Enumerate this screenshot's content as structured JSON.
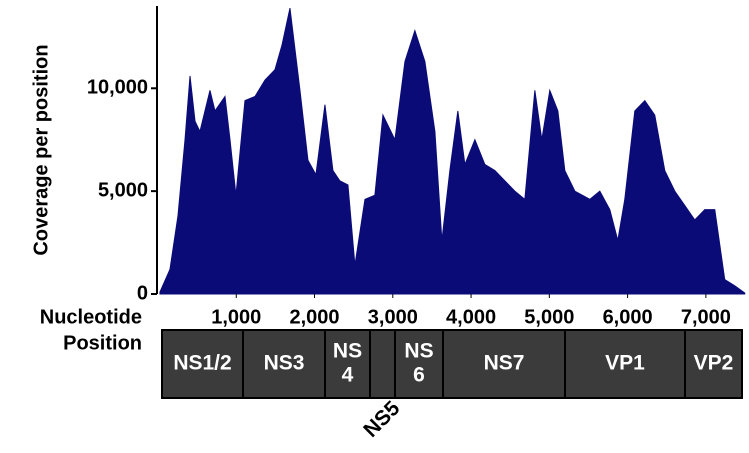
{
  "chart_data": {
    "type": "area",
    "y_label": "Coverage per position",
    "x_label": [
      "Nucleotide",
      "Position"
    ],
    "color": "#0b0b78",
    "x": [
      25,
      153,
      255,
      345,
      409,
      473,
      536,
      664,
      728,
      856,
      920,
      996,
      1111,
      1239,
      1367,
      1494,
      1584,
      1686,
      1814,
      1916,
      2018,
      2133,
      2235,
      2324,
      2427,
      2516,
      2644,
      2771,
      2874,
      3027,
      3155,
      3282,
      3410,
      3538,
      3627,
      3729,
      3831,
      3921,
      4049,
      4176,
      4304,
      4432,
      4559,
      4687,
      4815,
      4904,
      5006,
      5109,
      5198,
      5326,
      5517,
      5645,
      5773,
      5875,
      5964,
      6092,
      6220,
      6347,
      6475,
      6603,
      6731,
      6858,
      6986,
      7114,
      7241,
      7369,
      7497
    ],
    "values": [
      100,
      1200,
      3800,
      7500,
      10600,
      8400,
      7900,
      9900,
      8900,
      9600,
      7500,
      4800,
      9400,
      9600,
      10400,
      10900,
      12100,
      13900,
      9900,
      6500,
      5800,
      9200,
      6000,
      5500,
      5300,
      1400,
      4600,
      4800,
      8700,
      7500,
      11300,
      12800,
      11300,
      7900,
      2600,
      6000,
      8900,
      6300,
      7500,
      6300,
      6000,
      5500,
      5000,
      4600,
      9900,
      7500,
      9900,
      8900,
      6000,
      5000,
      4600,
      5000,
      4100,
      2600,
      4600,
      8900,
      9400,
      8700,
      6000,
      5000,
      4300,
      3600,
      4100,
      4100,
      700,
      400,
      50
    ],
    "xlim": [
      0,
      7500
    ],
    "xticks": [
      {
        "value": 1000,
        "label": "1,000"
      },
      {
        "value": 2000,
        "label": "2,000"
      },
      {
        "value": 3000,
        "label": "3,000"
      },
      {
        "value": 4000,
        "label": "4,000"
      },
      {
        "value": 5000,
        "label": "5,000"
      },
      {
        "value": 6000,
        "label": "6,000"
      },
      {
        "value": 7000,
        "label": "7,000"
      }
    ],
    "ylim": [
      0,
      14000
    ],
    "yticks": [
      0,
      {
        "value": 5000,
        "label": "5,000"
      },
      {
        "value": 10000,
        "label": "10,000"
      }
    ]
  },
  "genome_map": {
    "segments": [
      {
        "label": [
          "NS1/2"
        ]
      },
      {
        "label": [
          "NS3"
        ]
      },
      {
        "label": [
          "NS",
          "4"
        ]
      },
      {
        "label": [
          "NS5"
        ]
      },
      {
        "label": [
          "NS",
          "6"
        ]
      },
      {
        "label": [
          "NS7"
        ]
      },
      {
        "label": [
          "VP1"
        ]
      },
      {
        "label": [
          "VP2"
        ]
      }
    ]
  }
}
